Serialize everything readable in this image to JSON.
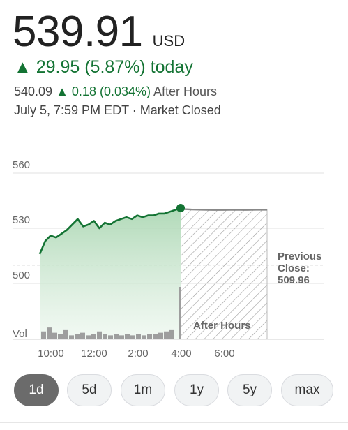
{
  "quote": {
    "price": "539.91",
    "currency": "USD",
    "change_arrow": "▲",
    "change_text": "29.95 (5.87%) today",
    "after_hours_price": "540.09",
    "after_hours_change": "0.18 (0.034%)",
    "after_hours_label": "After Hours",
    "status": "July 5, 7:59 PM EDT · Market Closed"
  },
  "chart_data": {
    "type": "area",
    "y_ticks": [
      "560",
      "530",
      "500"
    ],
    "y_tick_values": [
      560,
      530,
      500
    ],
    "x_ticks": [
      "10:00",
      "12:00",
      "2:00",
      "4:00",
      "6:00"
    ],
    "volume_label": "Vol",
    "previous_close": {
      "label_line1": "Previous",
      "label_line2": "Close:",
      "value": "509.96",
      "y": 509.96
    },
    "after_hours_label": "After Hours",
    "ylim": [
      490,
      560
    ],
    "regular_session": {
      "x": [
        "9:30",
        "9:45",
        "10:00",
        "10:15",
        "10:30",
        "10:45",
        "11:00",
        "11:15",
        "11:30",
        "11:45",
        "12:00",
        "12:15",
        "12:30",
        "12:45",
        "1:00",
        "1:15",
        "1:30",
        "1:45",
        "2:00",
        "2:15",
        "2:30",
        "2:45",
        "3:00",
        "3:15",
        "3:30",
        "3:45",
        "4:00"
      ],
      "values": [
        516,
        523,
        526,
        525,
        527,
        529,
        532,
        535,
        531,
        532,
        534,
        530,
        533,
        532,
        534,
        535,
        536,
        535,
        537,
        536,
        537,
        537,
        538,
        538,
        539,
        540,
        541
      ]
    },
    "after_hours": {
      "x": [
        "4:00",
        "4:30",
        "5:00",
        "5:30",
        "6:00",
        "6:30",
        "7:00",
        "7:30",
        "8:00"
      ],
      "values": [
        540.5,
        540.2,
        540.1,
        540.0,
        540.0,
        540.1,
        540.0,
        540.1,
        540.09
      ]
    },
    "volume": [
      6,
      9,
      5,
      4,
      7,
      3,
      4,
      5,
      3,
      4,
      6,
      4,
      3,
      4,
      3,
      4,
      3,
      4,
      3,
      4,
      4,
      5,
      6,
      7,
      40
    ],
    "colors": {
      "line": "#137333",
      "fill_top": "#a8d5b0",
      "grid": "#e0e0e0",
      "after_hours_line": "#888888",
      "hatch": "#9e9e9e"
    }
  },
  "ranges": [
    {
      "label": "1d",
      "active": true
    },
    {
      "label": "5d",
      "active": false
    },
    {
      "label": "1m",
      "active": false
    },
    {
      "label": "1y",
      "active": false
    },
    {
      "label": "5y",
      "active": false
    },
    {
      "label": "max",
      "active": false
    }
  ]
}
